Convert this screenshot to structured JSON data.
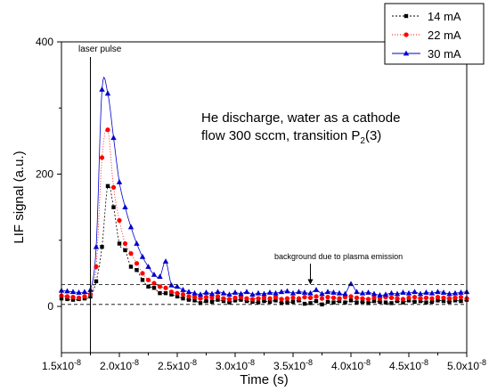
{
  "chart_data": {
    "type": "line",
    "xlabel": "Time (s)",
    "ylabel": "LIF signal (a.u.)",
    "xlim": [
      1.5e-08,
      5e-08
    ],
    "ylim": [
      -70,
      400
    ],
    "x_ticks": [
      {
        "value": 1.5e-08,
        "mantissa": "1.5x10",
        "exp": "-8"
      },
      {
        "value": 2e-08,
        "mantissa": "2.0x10",
        "exp": "-8"
      },
      {
        "value": 2.5e-08,
        "mantissa": "2.5x10",
        "exp": "-8"
      },
      {
        "value": 3e-08,
        "mantissa": "3.0x10",
        "exp": "-8"
      },
      {
        "value": 3.5e-08,
        "mantissa": "3.5x10",
        "exp": "-8"
      },
      {
        "value": 4e-08,
        "mantissa": "4.0x10",
        "exp": "-8"
      },
      {
        "value": 4.5e-08,
        "mantissa": "4.5x10",
        "exp": "-8"
      },
      {
        "value": 5e-08,
        "mantissa": "5.0x10",
        "exp": "-8"
      }
    ],
    "y_ticks": [
      0,
      200,
      400
    ],
    "grid": false,
    "legend_position": "top-right",
    "annotations": {
      "laser_pulse": {
        "text": "laser pulse",
        "x": 1.75e-08
      },
      "line1": "He discharge, water as a cathode",
      "line2_prefix": "flow 300 sccm, transition P",
      "line2_sub": "2",
      "line2_suffix": "(3)",
      "background": {
        "text": "background due to plasma emission",
        "x": 3.65e-08,
        "y_top": 33,
        "y_bottom": 3
      }
    },
    "series": [
      {
        "name": "14 mA",
        "color": "#000000",
        "marker": "square",
        "dash": "2,2",
        "x": [
          1.5e-08,
          1.55e-08,
          1.6e-08,
          1.65e-08,
          1.7e-08,
          1.75e-08,
          1.8e-08,
          1.85e-08,
          1.9e-08,
          1.95e-08,
          2e-08,
          2.05e-08,
          2.1e-08,
          2.15e-08,
          2.2e-08,
          2.25e-08,
          2.3e-08,
          2.35e-08,
          2.4e-08,
          2.45e-08,
          2.5e-08,
          2.55e-08,
          2.6e-08,
          2.65e-08,
          2.7e-08,
          2.75e-08,
          2.8e-08,
          2.85e-08,
          2.9e-08,
          2.95e-08,
          3e-08,
          3.05e-08,
          3.1e-08,
          3.15e-08,
          3.2e-08,
          3.25e-08,
          3.3e-08,
          3.35e-08,
          3.4e-08,
          3.45e-08,
          3.5e-08,
          3.55e-08,
          3.6e-08,
          3.65e-08,
          3.7e-08,
          3.75e-08,
          3.8e-08,
          3.85e-08,
          3.9e-08,
          3.95e-08,
          4e-08,
          4.05e-08,
          4.1e-08,
          4.15e-08,
          4.2e-08,
          4.25e-08,
          4.3e-08,
          4.35e-08,
          4.4e-08,
          4.45e-08,
          4.5e-08,
          4.55e-08,
          4.6e-08,
          4.65e-08,
          4.7e-08,
          4.75e-08,
          4.8e-08,
          4.85e-08,
          4.9e-08,
          4.95e-08,
          5e-08
        ],
        "y": [
          12,
          11,
          10,
          11,
          12,
          15,
          38,
          90,
          182,
          150,
          95,
          85,
          60,
          55,
          40,
          30,
          28,
          20,
          20,
          18,
          15,
          12,
          10,
          9,
          5,
          8,
          7,
          10,
          8,
          6,
          9,
          10,
          8,
          7,
          6,
          8,
          7,
          9,
          5,
          6,
          7,
          9,
          4,
          5,
          8,
          3,
          7,
          6,
          8,
          6,
          9,
          6,
          7,
          5,
          8,
          7,
          6,
          5,
          8,
          6,
          9,
          7,
          8,
          6,
          7,
          9,
          8,
          7,
          9,
          8,
          10
        ]
      },
      {
        "name": "22 mA",
        "color": "#ff0000",
        "marker": "circle",
        "dash": "1,2",
        "x": [
          1.5e-08,
          1.55e-08,
          1.6e-08,
          1.65e-08,
          1.7e-08,
          1.75e-08,
          1.8e-08,
          1.85e-08,
          1.9e-08,
          1.95e-08,
          2e-08,
          2.05e-08,
          2.1e-08,
          2.15e-08,
          2.2e-08,
          2.25e-08,
          2.3e-08,
          2.35e-08,
          2.4e-08,
          2.45e-08,
          2.5e-08,
          2.55e-08,
          2.6e-08,
          2.65e-08,
          2.7e-08,
          2.75e-08,
          2.8e-08,
          2.85e-08,
          2.9e-08,
          2.95e-08,
          3e-08,
          3.05e-08,
          3.1e-08,
          3.15e-08,
          3.2e-08,
          3.25e-08,
          3.3e-08,
          3.35e-08,
          3.4e-08,
          3.45e-08,
          3.5e-08,
          3.55e-08,
          3.6e-08,
          3.65e-08,
          3.7e-08,
          3.75e-08,
          3.8e-08,
          3.85e-08,
          3.9e-08,
          3.95e-08,
          4e-08,
          4.05e-08,
          4.1e-08,
          4.15e-08,
          4.2e-08,
          4.25e-08,
          4.3e-08,
          4.35e-08,
          4.4e-08,
          4.45e-08,
          4.5e-08,
          4.55e-08,
          4.6e-08,
          4.65e-08,
          4.7e-08,
          4.75e-08,
          4.8e-08,
          4.85e-08,
          4.9e-08,
          4.95e-08,
          5e-08
        ],
        "y": [
          16,
          15,
          14,
          13,
          15,
          18,
          60,
          225,
          267,
          180,
          130,
          95,
          80,
          65,
          50,
          40,
          35,
          30,
          28,
          22,
          20,
          18,
          15,
          14,
          12,
          14,
          13,
          15,
          12,
          11,
          13,
          14,
          12,
          11,
          12,
          13,
          12,
          14,
          11,
          12,
          13,
          12,
          14,
          13,
          15,
          12,
          14,
          13,
          12,
          14,
          15,
          13,
          12,
          11,
          13,
          12,
          14,
          13,
          12,
          11,
          13,
          14,
          12,
          13,
          12,
          14,
          13,
          12,
          13,
          14,
          12
        ]
      },
      {
        "name": "30 mA",
        "color": "#0000cc",
        "marker": "triangle",
        "dash": "",
        "x": [
          1.5e-08,
          1.55e-08,
          1.6e-08,
          1.65e-08,
          1.7e-08,
          1.75e-08,
          1.8e-08,
          1.85e-08,
          1.9e-08,
          1.95e-08,
          2e-08,
          2.05e-08,
          2.1e-08,
          2.15e-08,
          2.2e-08,
          2.25e-08,
          2.3e-08,
          2.35e-08,
          2.4e-08,
          2.45e-08,
          2.5e-08,
          2.55e-08,
          2.6e-08,
          2.65e-08,
          2.7e-08,
          2.75e-08,
          2.8e-08,
          2.85e-08,
          2.9e-08,
          2.95e-08,
          3e-08,
          3.05e-08,
          3.1e-08,
          3.15e-08,
          3.2e-08,
          3.25e-08,
          3.3e-08,
          3.35e-08,
          3.4e-08,
          3.45e-08,
          3.5e-08,
          3.55e-08,
          3.6e-08,
          3.65e-08,
          3.7e-08,
          3.75e-08,
          3.8e-08,
          3.85e-08,
          3.9e-08,
          3.95e-08,
          4e-08,
          4.05e-08,
          4.1e-08,
          4.15e-08,
          4.2e-08,
          4.25e-08,
          4.3e-08,
          4.35e-08,
          4.4e-08,
          4.45e-08,
          4.5e-08,
          4.55e-08,
          4.6e-08,
          4.65e-08,
          4.7e-08,
          4.75e-08,
          4.8e-08,
          4.85e-08,
          4.9e-08,
          4.95e-08,
          5e-08
        ],
        "y": [
          24,
          23,
          22,
          21,
          22,
          25,
          90,
          328,
          322,
          255,
          188,
          150,
          120,
          95,
          75,
          60,
          48,
          45,
          68,
          32,
          30,
          25,
          22,
          20,
          18,
          21,
          19,
          22,
          20,
          18,
          21,
          19,
          22,
          18,
          20,
          19,
          21,
          20,
          22,
          23,
          20,
          22,
          21,
          20,
          25,
          19,
          22,
          21,
          20,
          19,
          34,
          22,
          20,
          21,
          19,
          17,
          18,
          20,
          19,
          21,
          20,
          22,
          19,
          21,
          20,
          22,
          21,
          19,
          20,
          21,
          22
        ]
      }
    ]
  }
}
